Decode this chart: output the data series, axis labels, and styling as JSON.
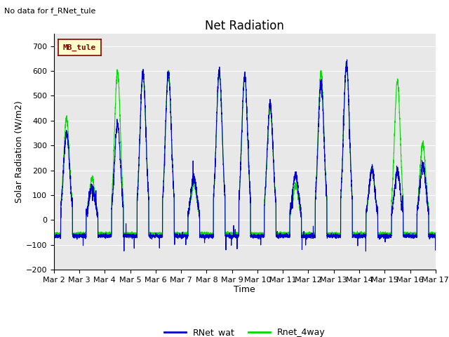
{
  "title": "Net Radiation",
  "xlabel": "Time",
  "ylabel": "Solar Radiation (W/m2)",
  "ylim": [
    -200,
    750
  ],
  "yticks": [
    -200,
    -100,
    0,
    100,
    200,
    300,
    400,
    500,
    600,
    700
  ],
  "xlim": [
    0,
    15
  ],
  "xtick_labels": [
    "Mar 2",
    "Mar 3",
    "Mar 4",
    "Mar 5",
    "Mar 6",
    "Mar 7",
    "Mar 8",
    "Mar 9",
    "Mar 10",
    "Mar 11",
    "Mar 12",
    "Mar 13",
    "Mar 14",
    "Mar 15",
    "Mar 16",
    "Mar 17"
  ],
  "xtick_positions": [
    0,
    1,
    2,
    3,
    4,
    5,
    6,
    7,
    8,
    9,
    10,
    11,
    12,
    13,
    14,
    15
  ],
  "no_data_text": "No data for f_RNet_tule",
  "legend_label1": "RNet_wat",
  "legend_label2": "Rnet_4way",
  "legend_color1": "#0000cc",
  "legend_color2": "#00dd00",
  "inset_label": "MB_tule",
  "inset_bg": "#ffffcc",
  "inset_border": "#880000",
  "inset_text_color": "#880000",
  "plot_bg": "#e8e8e8",
  "fig_bg": "#ffffff",
  "line_color1": "#0000cc",
  "line_color2": "#00dd00",
  "line_width": 0.8,
  "font_size_title": 12,
  "font_size_axis": 9,
  "font_size_tick": 8,
  "font_size_legend": 9,
  "font_size_nodata": 8,
  "n_per_day": 288,
  "n_days": 15,
  "blue_peaks": [
    350,
    135,
    385,
    595,
    595,
    175,
    597,
    580,
    465,
    185,
    555,
    630,
    205,
    195,
    225
  ],
  "green_peaks": [
    410,
    165,
    600,
    590,
    590,
    145,
    590,
    580,
    450,
    140,
    595,
    625,
    200,
    560,
    305
  ],
  "night_base_blue": -65,
  "night_base_green": -55,
  "noise_blue": 10,
  "noise_green": 7
}
